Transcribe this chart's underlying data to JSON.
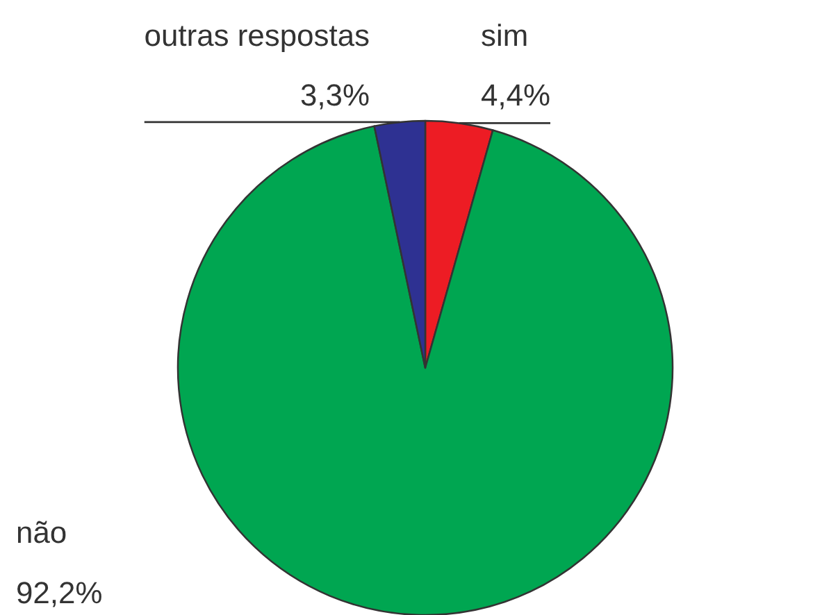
{
  "chart_data": {
    "type": "pie",
    "categories": [
      "sim",
      "não",
      "outras respostas"
    ],
    "values": [
      4.4,
      92.2,
      3.3
    ],
    "colors": [
      "#ed1c24",
      "#00a651",
      "#2e3192"
    ],
    "value_labels": [
      "4,4%",
      "92,2%",
      "3,3%"
    ]
  }
}
